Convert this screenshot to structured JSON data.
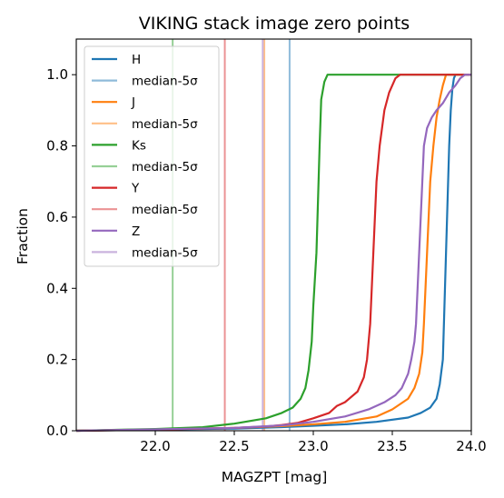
{
  "chart_data": {
    "type": "line",
    "title": "VIKING stack image zero points",
    "xlabel": "MAGZPT [mag]",
    "ylabel": "Fraction",
    "xlim": [
      21.5,
      24.0
    ],
    "ylim": [
      0.0,
      1.1
    ],
    "xticks": [
      "22.0",
      "22.5",
      "23.0",
      "23.5",
      "24.0"
    ],
    "yticks": [
      "0.0",
      "0.2",
      "0.4",
      "0.6",
      "0.8",
      "1.0"
    ],
    "legend_position": "upper-left",
    "series": [
      {
        "name": "H",
        "color": "#1f77b4",
        "median_line": {
          "name": "median-5σ",
          "x": 22.85
        },
        "points": [
          [
            21.5,
            0.0
          ],
          [
            22.0,
            0.003
          ],
          [
            22.5,
            0.006
          ],
          [
            22.8,
            0.01
          ],
          [
            23.0,
            0.014
          ],
          [
            23.2,
            0.018
          ],
          [
            23.4,
            0.025
          ],
          [
            23.6,
            0.037
          ],
          [
            23.68,
            0.05
          ],
          [
            23.74,
            0.065
          ],
          [
            23.78,
            0.09
          ],
          [
            23.8,
            0.13
          ],
          [
            23.82,
            0.2
          ],
          [
            23.83,
            0.35
          ],
          [
            23.84,
            0.5
          ],
          [
            23.85,
            0.65
          ],
          [
            23.86,
            0.8
          ],
          [
            23.87,
            0.9
          ],
          [
            23.88,
            0.96
          ],
          [
            23.89,
            0.99
          ],
          [
            23.9,
            1.0
          ],
          [
            24.0,
            1.0
          ]
        ]
      },
      {
        "name": "J",
        "color": "#ff7f0e",
        "median_line": {
          "name": "median-5σ",
          "x": 22.69
        },
        "points": [
          [
            21.5,
            0.0
          ],
          [
            22.0,
            0.004
          ],
          [
            22.5,
            0.008
          ],
          [
            22.8,
            0.013
          ],
          [
            23.0,
            0.018
          ],
          [
            23.2,
            0.025
          ],
          [
            23.4,
            0.04
          ],
          [
            23.5,
            0.06
          ],
          [
            23.6,
            0.09
          ],
          [
            23.64,
            0.12
          ],
          [
            23.67,
            0.16
          ],
          [
            23.69,
            0.22
          ],
          [
            23.7,
            0.3
          ],
          [
            23.71,
            0.4
          ],
          [
            23.72,
            0.5
          ],
          [
            23.73,
            0.6
          ],
          [
            23.74,
            0.7
          ],
          [
            23.76,
            0.8
          ],
          [
            23.78,
            0.88
          ],
          [
            23.8,
            0.93
          ],
          [
            23.82,
            0.97
          ],
          [
            23.84,
            1.0
          ],
          [
            24.0,
            1.0
          ]
        ]
      },
      {
        "name": "Ks",
        "color": "#2ca02c",
        "median_line": {
          "name": "median-5σ",
          "x": 22.11
        },
        "points": [
          [
            21.5,
            0.0
          ],
          [
            22.0,
            0.005
          ],
          [
            22.3,
            0.01
          ],
          [
            22.5,
            0.02
          ],
          [
            22.7,
            0.035
          ],
          [
            22.8,
            0.05
          ],
          [
            22.87,
            0.065
          ],
          [
            22.92,
            0.09
          ],
          [
            22.95,
            0.12
          ],
          [
            22.97,
            0.17
          ],
          [
            22.99,
            0.25
          ],
          [
            23.0,
            0.35
          ],
          [
            23.02,
            0.5
          ],
          [
            23.03,
            0.65
          ],
          [
            23.04,
            0.8
          ],
          [
            23.05,
            0.93
          ],
          [
            23.07,
            0.98
          ],
          [
            23.09,
            1.0
          ],
          [
            24.0,
            1.0
          ]
        ]
      },
      {
        "name": "Y",
        "color": "#d62728",
        "median_line": {
          "name": "median-5σ",
          "x": 22.44
        },
        "points": [
          [
            21.5,
            0.0
          ],
          [
            22.0,
            0.003
          ],
          [
            22.5,
            0.008
          ],
          [
            22.7,
            0.012
          ],
          [
            22.8,
            0.016
          ],
          [
            22.9,
            0.022
          ],
          [
            23.0,
            0.035
          ],
          [
            23.1,
            0.05
          ],
          [
            23.15,
            0.07
          ],
          [
            23.2,
            0.08
          ],
          [
            23.28,
            0.11
          ],
          [
            23.32,
            0.15
          ],
          [
            23.34,
            0.2
          ],
          [
            23.36,
            0.3
          ],
          [
            23.37,
            0.4
          ],
          [
            23.38,
            0.5
          ],
          [
            23.39,
            0.6
          ],
          [
            23.4,
            0.7
          ],
          [
            23.42,
            0.8
          ],
          [
            23.45,
            0.9
          ],
          [
            23.48,
            0.95
          ],
          [
            23.52,
            0.99
          ],
          [
            23.55,
            1.0
          ],
          [
            24.0,
            1.0
          ]
        ]
      },
      {
        "name": "Z",
        "color": "#9467bd",
        "median_line": {
          "name": "median-5σ",
          "x": 22.68
        },
        "points": [
          [
            21.5,
            0.0
          ],
          [
            22.0,
            0.004
          ],
          [
            22.5,
            0.008
          ],
          [
            22.8,
            0.015
          ],
          [
            23.0,
            0.025
          ],
          [
            23.2,
            0.04
          ],
          [
            23.35,
            0.06
          ],
          [
            23.45,
            0.08
          ],
          [
            23.52,
            0.1
          ],
          [
            23.56,
            0.12
          ],
          [
            23.6,
            0.16
          ],
          [
            23.62,
            0.2
          ],
          [
            23.64,
            0.25
          ],
          [
            23.65,
            0.3
          ],
          [
            23.66,
            0.4
          ],
          [
            23.67,
            0.5
          ],
          [
            23.68,
            0.6
          ],
          [
            23.69,
            0.7
          ],
          [
            23.7,
            0.8
          ],
          [
            23.72,
            0.85
          ],
          [
            23.75,
            0.88
          ],
          [
            23.78,
            0.9
          ],
          [
            23.82,
            0.92
          ],
          [
            23.86,
            0.95
          ],
          [
            23.9,
            0.97
          ],
          [
            23.93,
            0.99
          ],
          [
            23.96,
            1.0
          ],
          [
            24.0,
            1.0
          ]
        ]
      }
    ]
  }
}
